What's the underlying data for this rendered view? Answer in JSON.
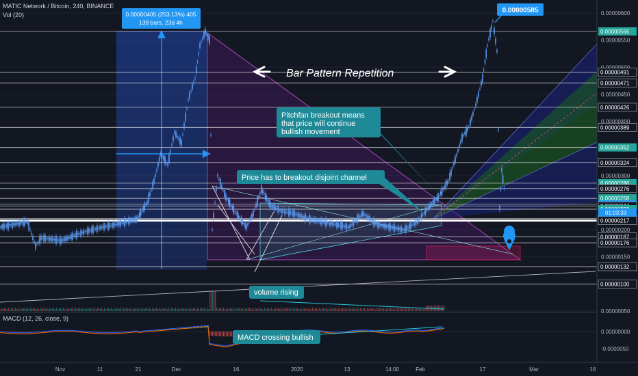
{
  "header": {
    "symbol_line": "MATIC Network / Bitcoin, 240, BINANCE",
    "volume_label": "Vol (20)",
    "macd_label": "MACD (12, 26, close, 9)"
  },
  "measure_box": {
    "line1": "0.00000405 (253.13%) 405",
    "line2": "139 bars, 23d 4h"
  },
  "peak_label": "0.00000585",
  "countdown": "01:03:33",
  "annotations": {
    "bar_pattern": "Bar Pattern Repetition",
    "pitchfan": "Pitchfan breakout means that price will continue bullish movement",
    "disjoint": "Price has to breakout disjoint channel",
    "volume": "volume rising",
    "macd": "MACD crossing bullish"
  },
  "colors": {
    "background": "#131722",
    "candle": "#5b9cf6",
    "callout": "#1e8a98",
    "badge": "#2196f3",
    "fan_green": "#1b5e20",
    "fan_blue": "#1a237e",
    "triangle": "#7b1fa2"
  },
  "chart_data": {
    "type": "candlestick",
    "x_ticks": [
      "Nov",
      "11",
      "21",
      "Dec",
      "16",
      "2020",
      "13",
      "14:00",
      "Feb",
      "17",
      "Mar",
      "16"
    ],
    "y_ticks": [
      "0.00000600",
      "0.00000550",
      "0.00000500",
      "0.00000450",
      "0.00000400",
      "0.00000350",
      "0.00000300",
      "0.00000250",
      "0.00000200",
      "0.00000150",
      "0.00000100",
      "0.00000050"
    ],
    "price_labels": [
      "0.00000566",
      "0.00000491",
      "0.00000471",
      "0.00000426",
      "0.00000389",
      "0.00000352",
      "0.00000324",
      "0.00000286",
      "0.00000276",
      "0.00000258",
      "0.00000247",
      "0.00000244",
      "0.00000238",
      "0.00000221",
      "0.00000217",
      "0.00000187",
      "0.00000176",
      "0.00000132",
      "0.00000100"
    ],
    "macd_ticks": [
      "0.00000000",
      "-0.0000050"
    ],
    "ylim": [
      5e-07,
      6.15e-06
    ],
    "key_values": {
      "low": 1.6e-06,
      "peak_first": 5.66e-06,
      "peak_second": 5.85e-06,
      "last": 2.47e-06
    },
    "legend": "none",
    "grid": true
  }
}
